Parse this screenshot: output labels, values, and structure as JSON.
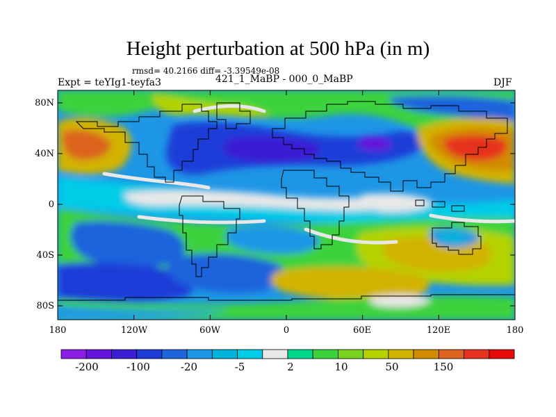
{
  "header": {
    "title": "Height perturbation at 500 hPa (in m)",
    "stats": "rmsd= 40.2166 diff= -3.39549e-08",
    "experiment": "Expt = teYIg1-teyfa3",
    "period": "421_1_MaBP - 000_0_MaBP",
    "season": "DJF"
  },
  "map": {
    "lat_labels": [
      "80N",
      "40N",
      "0",
      "40S",
      "80S"
    ],
    "lon_labels": [
      "180",
      "120W",
      "60W",
      "0",
      "60E",
      "120E",
      "180"
    ]
  },
  "colorbar": {
    "labels": [
      "-200",
      "-100",
      "-20",
      "-5",
      "2",
      "10",
      "50",
      "150"
    ],
    "colors": [
      "#8a1ee6",
      "#6414dc",
      "#3a1ed4",
      "#1e3cd8",
      "#1e64dc",
      "#1e96e6",
      "#00b4dc",
      "#00cce8",
      "#e8e8e8",
      "#00d88c",
      "#3cd23c",
      "#78d21e",
      "#b4d200",
      "#d2b400",
      "#d28c00",
      "#dc641e",
      "#e6321e",
      "#e60a0a"
    ]
  }
}
